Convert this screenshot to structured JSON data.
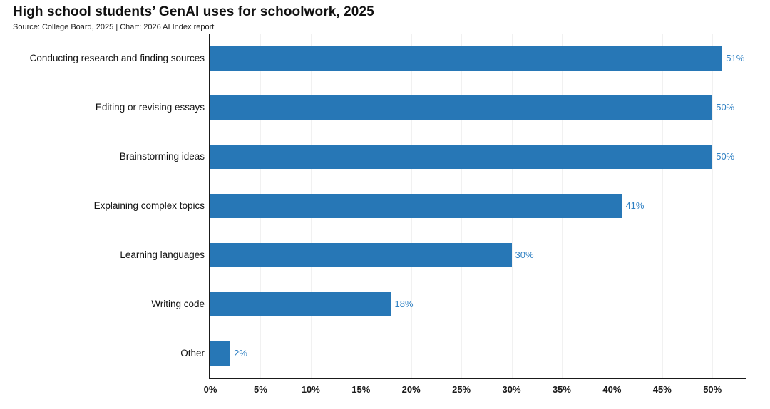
{
  "header": {
    "title": "High school students’ GenAI uses for schoolwork, 2025",
    "source_line": "Source: College Board, 2025 | Chart: 2026 AI Index report"
  },
  "chart_data": {
    "type": "bar",
    "orientation": "horizontal",
    "title": "High school students’ GenAI uses for schoolwork, 2025",
    "subtitle": "Source: College Board, 2025 | Chart: 2026 AI Index report",
    "categories": [
      "Conducting research and finding sources",
      "Editing or revising essays",
      "Brainstorming ideas",
      "Explaining complex topics",
      "Learning languages",
      "Writing code",
      "Other"
    ],
    "values": [
      51,
      50,
      50,
      41,
      30,
      18,
      2
    ],
    "value_labels": [
      "51%",
      "50%",
      "50%",
      "41%",
      "30%",
      "18%",
      "2%"
    ],
    "xlabel": "",
    "ylabel": "",
    "x_ticks": [
      "0%",
      "5%",
      "10%",
      "15%",
      "20%",
      "25%",
      "30%",
      "35%",
      "40%",
      "45%",
      "50%"
    ],
    "x_tick_values": [
      0,
      5,
      10,
      15,
      20,
      25,
      30,
      35,
      40,
      45,
      50
    ],
    "xlim": [
      0,
      53.25
    ],
    "grid": "vertical-faint",
    "legend": "none",
    "colors": {
      "bar": "#2777b6",
      "value_label": "#2f80c3",
      "axis": "#1a1a1a",
      "gridline": "#f1f1f1",
      "text": "#111111"
    }
  }
}
